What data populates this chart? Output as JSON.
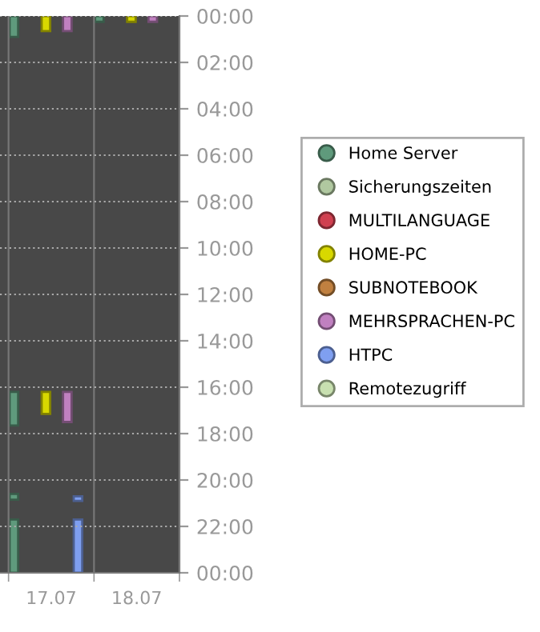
{
  "chart_data": {
    "type": "bar",
    "categories": [
      "17.07",
      "18.07"
    ],
    "ylim": [
      24,
      0
    ],
    "yticks": [
      {
        "value": 0,
        "label": "00:00"
      },
      {
        "value": 2,
        "label": "02:00"
      },
      {
        "value": 4,
        "label": "04:00"
      },
      {
        "value": 6,
        "label": "06:00"
      },
      {
        "value": 8,
        "label": "08:00"
      },
      {
        "value": 10,
        "label": "10:00"
      },
      {
        "value": 12,
        "label": "12:00"
      },
      {
        "value": 14,
        "label": "14:00"
      },
      {
        "value": 16,
        "label": "16:00"
      },
      {
        "value": 18,
        "label": "18:00"
      },
      {
        "value": 20,
        "label": "20:00"
      },
      {
        "value": 22,
        "label": "22:00"
      },
      {
        "value": 24,
        "label": "00:00"
      }
    ],
    "grid": true,
    "legend": "right",
    "series": [
      {
        "name": "Home Server",
        "color": "#5f9a7c",
        "base": [
          0,
          0
        ],
        "values": [
          0.9,
          0.25
        ]
      },
      {
        "color": "#5f9a7c",
        "base": [
          16.2,
          null
        ],
        "values": [
          1.45,
          null
        ]
      },
      {
        "color": "#5f9a7c",
        "base": [
          20.6,
          null
        ],
        "values": [
          0.25,
          null
        ]
      },
      {
        "color": "#5f9a7c",
        "base": [
          21.7,
          null
        ],
        "values": [
          2.3,
          null
        ]
      },
      {
        "name": "Sicherungszeiten",
        "color": "#b0c8a0",
        "values": [
          null,
          null
        ]
      },
      {
        "name": "MULTILANGUAGE",
        "color": "#d04050",
        "values": [
          null,
          null
        ]
      },
      {
        "name": "HOME-PC",
        "color": "#d8d800",
        "base": [
          0,
          0
        ],
        "values": [
          0.65,
          0.25
        ]
      },
      {
        "color": "#d8d800",
        "base": [
          16.2,
          null
        ],
        "values": [
          0.95,
          null
        ]
      },
      {
        "name": "SUBNOTEBOOK",
        "color": "#c08040",
        "values": [
          null,
          null
        ]
      },
      {
        "name": "MEHRSPRACHEN-PC",
        "color": "#c080c0",
        "base": [
          0,
          0
        ],
        "values": [
          0.65,
          0.25
        ]
      },
      {
        "color": "#c080c0",
        "base": [
          16.2,
          null
        ],
        "values": [
          1.3,
          null
        ]
      },
      {
        "name": "HTPC",
        "color": "#7f9ff0",
        "base": [
          20.7,
          null
        ],
        "values": [
          0.2,
          null
        ]
      },
      {
        "color": "#7f9ff0",
        "base": [
          21.7,
          null
        ],
        "values": [
          2.3,
          null
        ]
      },
      {
        "name": "Remotezugriff",
        "color": "#c8e0b0",
        "values": [
          null,
          null
        ]
      }
    ]
  }
}
